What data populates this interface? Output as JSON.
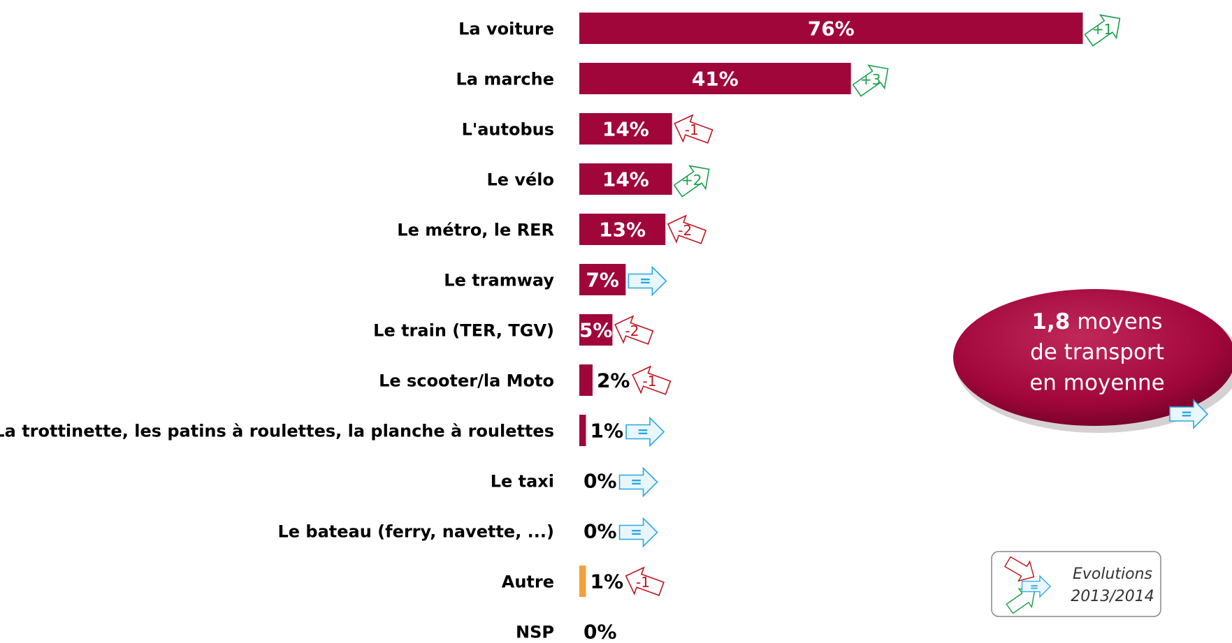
{
  "chart_data": {
    "type": "bar",
    "categories": [
      "La voiture",
      "La marche",
      "L'autobus",
      "Le vélo",
      "Le métro, le RER",
      "Le tramway",
      "Le train (TER, TGV)",
      "Le scooter/la Moto",
      "La trottinette, les patins à roulettes, la planche à roulettes",
      "Le taxi",
      "Le bateau (ferry, navette, ...)",
      "Autre",
      "NSP"
    ],
    "values": [
      76,
      41,
      14,
      14,
      13,
      7,
      5,
      2,
      1,
      0,
      0,
      1,
      0
    ],
    "value_labels": [
      "76%",
      "41%",
      "14%",
      "14%",
      "13%",
      "7%",
      "5%",
      "2%",
      "1%",
      "0%",
      "0%",
      "1%",
      "0%"
    ],
    "colors": [
      "#a0063a",
      "#a0063a",
      "#a0063a",
      "#a0063a",
      "#a0063a",
      "#a0063a",
      "#a0063a",
      "#a0063a",
      "#a0063a",
      "#a0063a",
      "#a0063a",
      "#f2a03c",
      "#a0063a"
    ],
    "evolutions": [
      "+1",
      "+3",
      "-1",
      "+2",
      "-2",
      "=",
      "-2",
      "-1",
      "=",
      "=",
      "=",
      "-1",
      null
    ],
    "bubble": {
      "value_label": "1,8",
      "lines": [
        "moyens",
        "de transport",
        "en moyenne"
      ],
      "evolution": "="
    },
    "legend": {
      "lines": [
        "Evolutions",
        "2013/2014"
      ],
      "symbol": "="
    }
  }
}
